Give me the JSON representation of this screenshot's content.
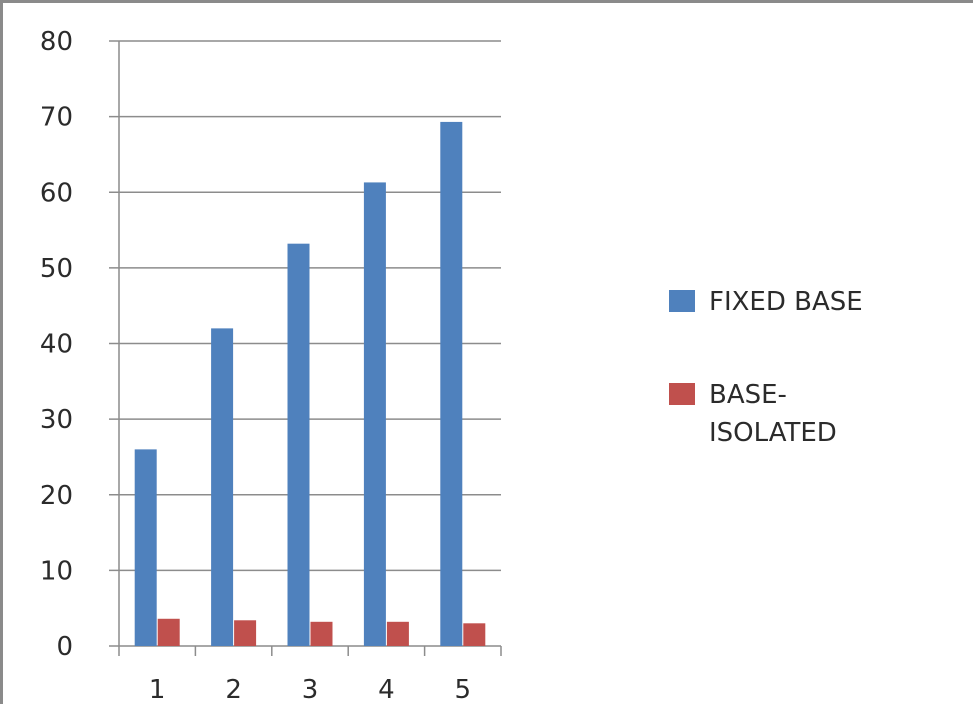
{
  "chart_data": {
    "type": "bar",
    "categories": [
      "1",
      "2",
      "3",
      "4",
      "5"
    ],
    "series": [
      {
        "name": "FIXED BASE",
        "color": "#4f81bd",
        "values": [
          26,
          42,
          53.2,
          61.3,
          69.3
        ]
      },
      {
        "name": "BASE-ISOLATED",
        "color": "#c0504d",
        "values": [
          3.6,
          3.4,
          3.2,
          3.2,
          3.0
        ]
      }
    ],
    "ylim": [
      0,
      80
    ],
    "yticks": [
      "0",
      "10",
      "20",
      "30",
      "40",
      "50",
      "60",
      "70",
      "80"
    ],
    "grid": true,
    "legend_position": "right"
  },
  "legend": {
    "items": [
      {
        "line1": "FIXED BASE",
        "line2": ""
      },
      {
        "line1": "BASE-",
        "line2": "ISOLATED"
      }
    ]
  }
}
